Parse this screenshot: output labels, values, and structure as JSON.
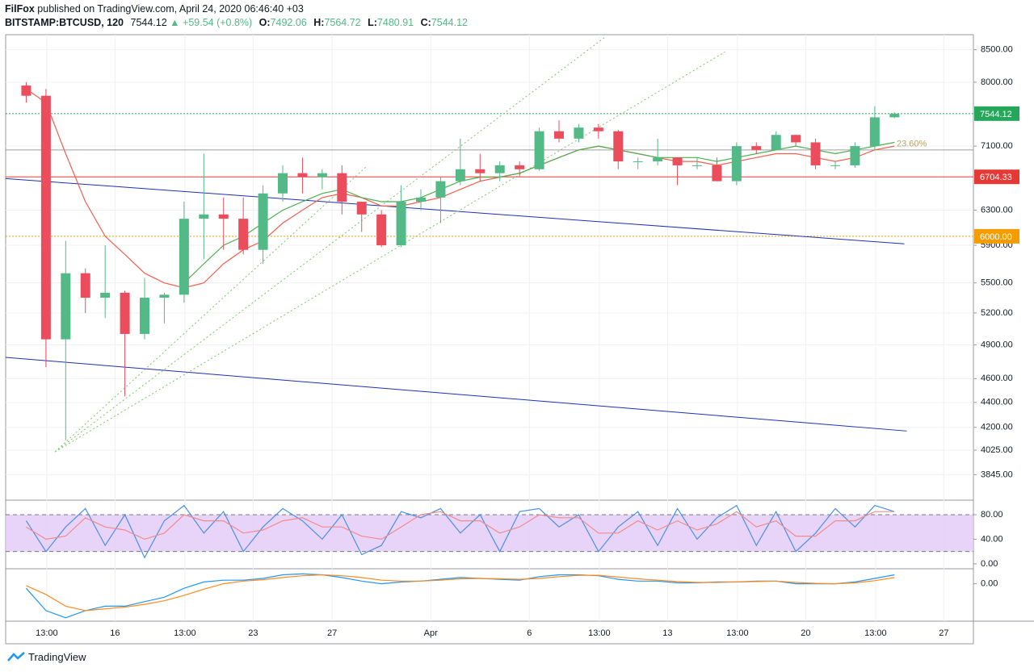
{
  "header": {
    "author": "FilFox",
    "published": "published on TradingView.com, April 24, 2020 06:46:40 +03",
    "symbol": "BITSTAMP:BTCUSD, 120",
    "change": "▲ +59.54 (+0.8%)",
    "o": "O:",
    "h": "H:",
    "l": "L:",
    "c": "C:"
  },
  "footer": "TradingView",
  "chart_data": {
    "type": "candlestick",
    "log_scale": true,
    "up_color": "#53b987",
    "down_color": "#eb4d5c",
    "x": [
      "2020-03-11",
      "2020-03-12",
      "2020-03-13",
      "2020-03-14",
      "2020-03-15",
      "2020-03-16",
      "2020-03-17",
      "2020-03-18",
      "2020-03-19",
      "2020-03-20",
      "2020-03-21",
      "2020-03-22",
      "2020-03-23",
      "2020-03-24",
      "2020-03-25",
      "2020-03-26",
      "2020-03-27",
      "2020-03-28",
      "2020-03-29",
      "2020-03-30",
      "2020-03-31",
      "2020-04-01",
      "2020-04-02",
      "2020-04-03",
      "2020-04-04",
      "2020-04-05",
      "2020-04-06",
      "2020-04-07",
      "2020-04-08",
      "2020-04-09",
      "2020-04-10",
      "2020-04-11",
      "2020-04-12",
      "2020-04-13",
      "2020-04-14",
      "2020-04-15",
      "2020-04-16",
      "2020-04-17",
      "2020-04-18",
      "2020-04-19",
      "2020-04-20",
      "2020-04-21",
      "2020-04-22",
      "2020-04-23",
      "2020-04-24"
    ],
    "open": [
      7950,
      7800,
      4950,
      5600,
      5350,
      5400,
      5000,
      5350,
      5380,
      6200,
      6250,
      6200,
      5850,
      6500,
      6750,
      6700,
      6750,
      6400,
      6250,
      5900,
      6400,
      6450,
      6650,
      6800,
      6750,
      6850,
      6800,
      7300,
      7200,
      7350,
      7300,
      6900,
      6900,
      6950,
      6850,
      6850,
      6650,
      7100,
      7050,
      7250,
      7150,
      6850,
      6850,
      7100,
      7492.06
    ],
    "high": [
      8000,
      7900,
      5950,
      5650,
      5900,
      5420,
      5550,
      5400,
      6400,
      7000,
      6450,
      6450,
      6600,
      6850,
      6950,
      6800,
      6850,
      6400,
      6300,
      6600,
      6550,
      6700,
      7200,
      7000,
      6900,
      6900,
      7350,
      7450,
      7400,
      7400,
      7320,
      6950,
      7200,
      6950,
      6950,
      6950,
      7150,
      7150,
      7300,
      7250,
      7200,
      6900,
      7150,
      7650,
      7564.72
    ],
    "low": [
      7700,
      4700,
      4100,
      5200,
      5150,
      4450,
      4950,
      5100,
      5300,
      5750,
      5850,
      5800,
      5700,
      6400,
      6500,
      6550,
      6250,
      6050,
      5880,
      5880,
      6300,
      6150,
      6600,
      6650,
      6650,
      6700,
      6780,
      7150,
      7150,
      7200,
      6800,
      6800,
      6850,
      6600,
      6800,
      6650,
      6600,
      7000,
      7050,
      7100,
      6800,
      6800,
      6820,
      7050,
      7480.91
    ],
    "close": [
      7800,
      4950,
      5600,
      5350,
      5400,
      5000,
      5350,
      5380,
      6200,
      6250,
      6200,
      5850,
      6500,
      6750,
      6700,
      6750,
      6400,
      6250,
      5900,
      6400,
      6450,
      6650,
      6800,
      6750,
      6850,
      6800,
      7300,
      7200,
      7350,
      7300,
      6900,
      6900,
      6950,
      6850,
      6850,
      6650,
      7100,
      7050,
      7250,
      7150,
      6850,
      6850,
      7100,
      7492.06,
      7544.12
    ],
    "series": [
      {
        "color": "#f0604d",
        "values": [
          7900,
          7700,
          7000,
          6400,
          6000,
          5800,
          5600,
          5500,
          5450,
          5500,
          5700,
          5850,
          5950,
          6150,
          6300,
          6450,
          6500,
          6450,
          6350,
          6350,
          6400,
          6450,
          6550,
          6650,
          6700,
          6750,
          6850,
          6950,
          7050,
          7100,
          7050,
          7000,
          6950,
          6900,
          6900,
          6850,
          6900,
          6950,
          7000,
          7000,
          6950,
          6900,
          6950,
          7050,
          7100
        ]
      },
      {
        "color": "#4caf50",
        "values": [
          null,
          null,
          null,
          null,
          null,
          null,
          null,
          null,
          5500,
          5700,
          5900,
          6000,
          6150,
          6300,
          6400,
          6500,
          6550,
          6450,
          6400,
          6400,
          6450,
          6550,
          6650,
          6700,
          6700,
          6750,
          6850,
          6950,
          7050,
          7100,
          7050,
          7000,
          6950,
          6950,
          6950,
          6900,
          6950,
          7000,
          7050,
          7100,
          7050,
          7000,
          7050,
          7100,
          7150
        ]
      }
    ],
    "xlim": [
      "2020-03-10T11:00",
      "2020-04-28T12:00"
    ],
    "xticks": [
      {
        "value": "2020-03-12T13:00",
        "label": "13:00"
      },
      {
        "value": "2020-03-16",
        "label": "16"
      },
      {
        "value": "2020-03-19T13:00",
        "label": "13:00"
      },
      {
        "value": "2020-03-23",
        "label": "23"
      },
      {
        "value": "2020-03-27",
        "label": "27"
      },
      {
        "value": "2020-04-01",
        "label": "Apr"
      },
      {
        "value": "2020-04-06",
        "label": "6"
      },
      {
        "value": "2020-04-09T13:00",
        "label": "13:00"
      },
      {
        "value": "2020-04-13",
        "label": "13"
      },
      {
        "value": "2020-04-16T13:00",
        "label": "13:00"
      },
      {
        "value": "2020-04-20",
        "label": "20"
      },
      {
        "value": "2020-04-23T13:00",
        "label": "13:00"
      },
      {
        "value": "2020-04-27",
        "label": "27"
      }
    ],
    "ylim": [
      3666,
      8742
    ],
    "yticks": [
      {
        "value": 8500,
        "label": "8500.00"
      },
      {
        "value": 8000,
        "label": "8000.00"
      },
      {
        "value": 7100,
        "label": "7100.00"
      },
      {
        "value": 6300,
        "label": "6300.00"
      },
      {
        "value": 5900,
        "label": "5900.00"
      },
      {
        "value": 5500,
        "label": "5500.00"
      },
      {
        "value": 5200,
        "label": "5200.00"
      },
      {
        "value": 4900,
        "label": "4900.00"
      },
      {
        "value": 4600,
        "label": "4600.00"
      },
      {
        "value": 4400,
        "label": "4400.00"
      },
      {
        "value": 4200,
        "label": "4200.00"
      },
      {
        "value": 4025,
        "label": "4025.00"
      },
      {
        "value": 3845,
        "label": "3845.00"
      }
    ],
    "grid": true,
    "levels": [
      {
        "value": 7544.12,
        "color": "#26a65b"
      },
      {
        "value": 6704.33,
        "color": "#e53935"
      },
      {
        "value": 6000,
        "label": "6000.00",
        "color": "#f59d00"
      },
      {
        "value": 7050,
        "color": "#9e9e9e"
      }
    ],
    "trendlines": [
      {
        "color": "#1e2fb8",
        "points": [
          [
            "2020-03-10T11:00",
            6683
          ],
          [
            "2020-04-25T00:00",
            5916
          ]
        ]
      },
      {
        "color": "#1e2fb8",
        "points": [
          [
            "2020-03-10T11:00",
            4786
          ],
          [
            "2020-04-25T03:00",
            4171
          ]
        ]
      },
      {
        "color": "#7cc46a",
        "dashed": true,
        "points": [
          [
            "2020-03-12T23:00",
            4012
          ],
          [
            "2020-04-09T21:00",
            8712
          ]
        ]
      },
      {
        "color": "#7cc46a",
        "dashed": true,
        "points": [
          [
            "2020-03-12T23:00",
            4012
          ],
          [
            "2020-04-15T22:00",
            8467
          ]
        ]
      },
      {
        "color": "#7cc46a",
        "dashed": true,
        "points": [
          [
            "2020-03-12T23:00",
            4012
          ],
          [
            "2020-03-28T19:00",
            6846
          ]
        ]
      }
    ],
    "annotation": "23.60%",
    "oscillator": {
      "ylim": [
        -8,
        101
      ],
      "yticks": [
        {
          "value": 80,
          "label": "80.00"
        },
        {
          "value": 40,
          "label": "40.00"
        },
        {
          "value": 0,
          "label": "0.00"
        }
      ],
      "band": [
        20,
        80
      ],
      "band_color": "#e3c9f7",
      "series": [
        {
          "color": "#4a90e2",
          "values": [
            70,
            20,
            60,
            90,
            30,
            80,
            10,
            70,
            95,
            50,
            85,
            20,
            60,
            90,
            70,
            40,
            80,
            15,
            30,
            85,
            75,
            90,
            50,
            80,
            20,
            85,
            90,
            60,
            80,
            20,
            60,
            85,
            30,
            90,
            40,
            75,
            95,
            30,
            85,
            20,
            50,
            90,
            60,
            95,
            85
          ]
        },
        {
          "color": "#f08b8b",
          "values": [
            60,
            40,
            45,
            75,
            60,
            55,
            40,
            50,
            80,
            70,
            70,
            50,
            55,
            70,
            75,
            60,
            60,
            45,
            40,
            60,
            80,
            85,
            70,
            70,
            50,
            60,
            80,
            75,
            75,
            50,
            50,
            70,
            55,
            70,
            55,
            65,
            85,
            60,
            70,
            45,
            45,
            70,
            70,
            85,
            85
          ]
        }
      ]
    },
    "macd": {
      "ylim": [
        -400,
        150
      ],
      "yticks": [
        {
          "value": 0,
          "label": "0.00"
        }
      ],
      "series": [
        {
          "color": "#2196f3",
          "values": [
            -50,
            -300,
            -380,
            -300,
            -250,
            -250,
            -200,
            -150,
            -50,
            20,
            40,
            40,
            60,
            100,
            110,
            100,
            70,
            30,
            0,
            20,
            30,
            50,
            70,
            60,
            50,
            40,
            80,
            100,
            100,
            90,
            50,
            30,
            30,
            10,
            10,
            20,
            20,
            30,
            30,
            0,
            0,
            0,
            20,
            60,
            100
          ]
        },
        {
          "color": "#ff8a1f",
          "values": [
            -20,
            -120,
            -250,
            -300,
            -280,
            -260,
            -230,
            -190,
            -130,
            -60,
            0,
            30,
            45,
            70,
            90,
            100,
            90,
            70,
            40,
            30,
            30,
            40,
            55,
            60,
            55,
            50,
            60,
            80,
            95,
            95,
            75,
            55,
            40,
            25,
            15,
            15,
            20,
            25,
            30,
            15,
            5,
            0,
            10,
            35,
            70
          ]
        }
      ]
    }
  }
}
